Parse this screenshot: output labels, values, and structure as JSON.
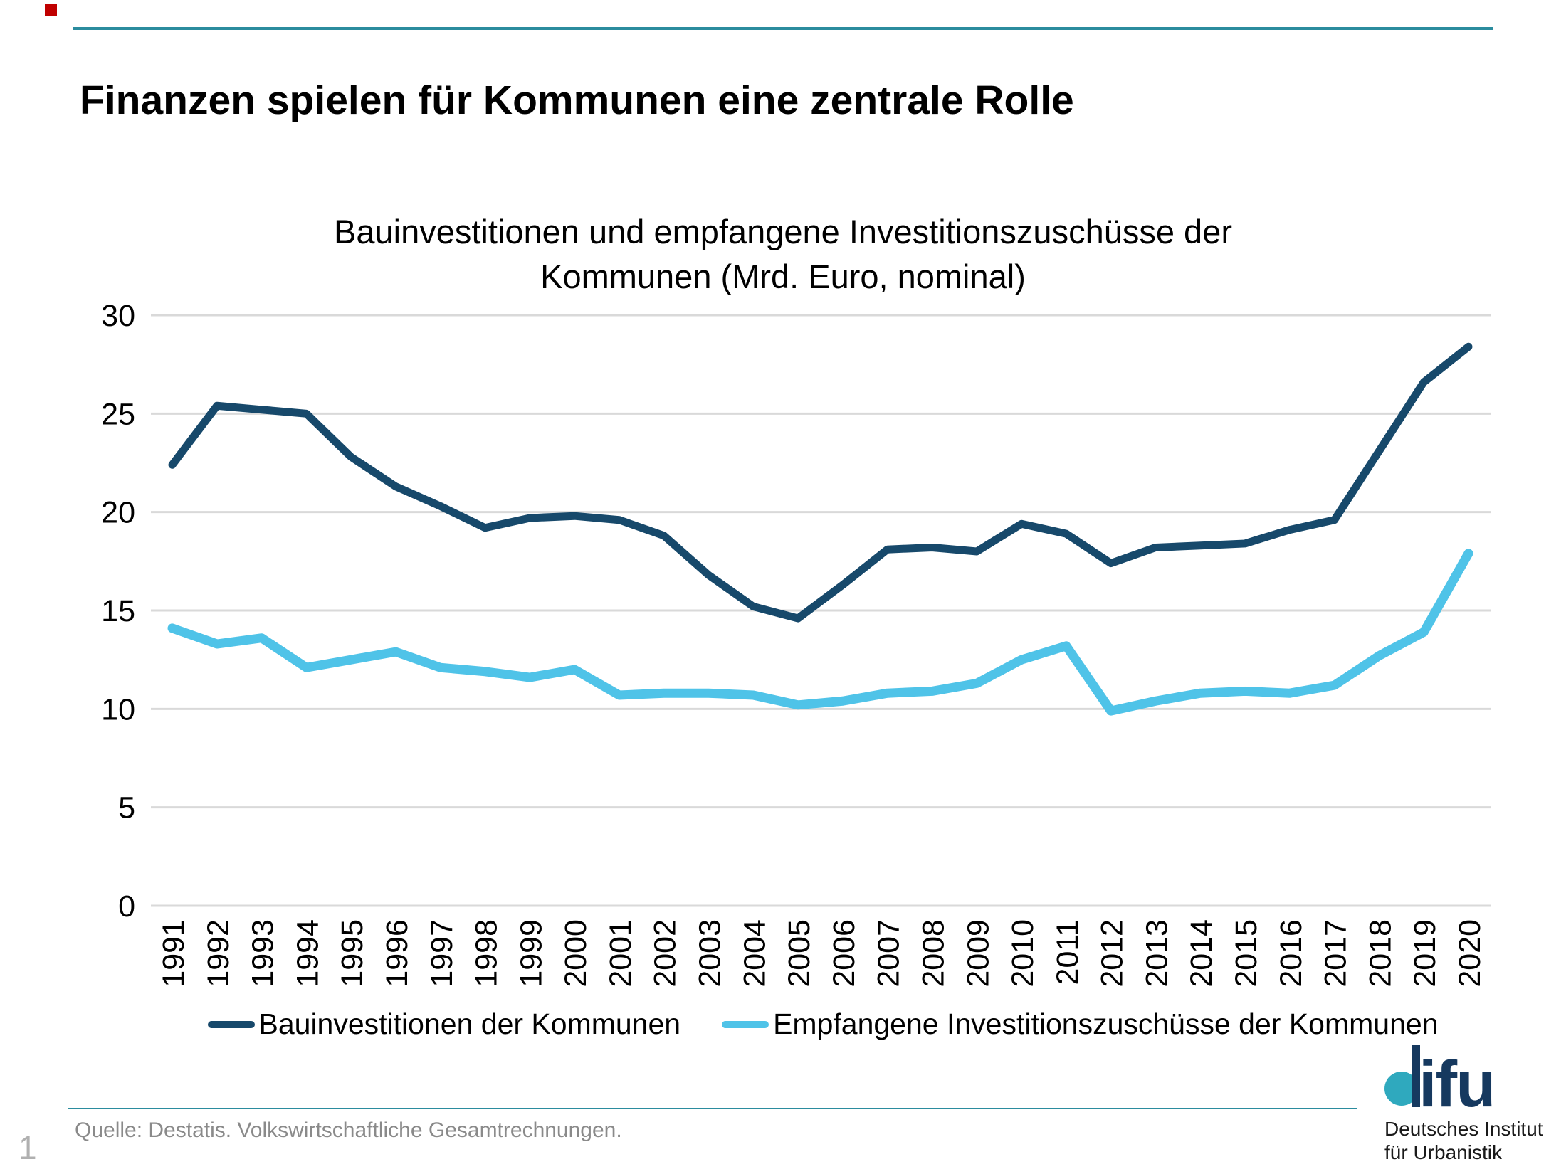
{
  "page": {
    "number": "1"
  },
  "header": {
    "title": "Finanzen spielen für Kommunen eine zentrale Rolle",
    "accent_color": "#c00000",
    "rule_color": "#2b8c9e"
  },
  "footer": {
    "source": "Quelle: Destatis. Volkswirtschaftliche Gesamtrechnungen."
  },
  "logo": {
    "wordmark": "difu",
    "wordmark_suffix": "ifu",
    "line1": "Deutsches Institut",
    "line2": "für Urbanistik",
    "dot_color": "#2fa9be",
    "text_color": "#16395f"
  },
  "chart_data": {
    "type": "line",
    "title": "Bauinvestitionen und empfangene Investitionszuschüsse der Kommunen (Mrd. Euro, nominal)",
    "categories": [
      "1991",
      "1992",
      "1993",
      "1994",
      "1995",
      "1996",
      "1997",
      "1998",
      "1999",
      "2000",
      "2001",
      "2002",
      "2003",
      "2004",
      "2005",
      "2006",
      "2007",
      "2008",
      "2009",
      "2010",
      "2011",
      "2012",
      "2013",
      "2014",
      "2015",
      "2016",
      "2017",
      "2018",
      "2019",
      "2020"
    ],
    "series": [
      {
        "name": "Bauinvestitionen der Kommunen",
        "color": "#17496b",
        "values": [
          22.4,
          25.4,
          25.2,
          25.0,
          22.8,
          21.3,
          20.3,
          19.2,
          19.7,
          19.8,
          19.6,
          18.8,
          16.8,
          15.2,
          14.6,
          16.3,
          18.1,
          18.2,
          18.0,
          19.4,
          18.9,
          17.4,
          18.2,
          18.3,
          18.4,
          19.1,
          19.6,
          23.1,
          26.6,
          28.4
        ]
      },
      {
        "name": "Empfangene Investitionszuschüsse der Kommunen",
        "color": "#4fc3e8",
        "values": [
          14.1,
          13.3,
          13.6,
          12.1,
          12.5,
          12.9,
          12.1,
          11.9,
          11.6,
          12.0,
          10.7,
          10.8,
          10.8,
          10.7,
          10.2,
          10.4,
          10.8,
          10.9,
          11.3,
          12.5,
          13.2,
          9.9,
          10.4,
          10.8,
          10.9,
          10.8,
          11.2,
          12.7,
          13.9,
          17.9
        ]
      }
    ],
    "ylim": [
      0,
      30
    ],
    "yticks": [
      0,
      5,
      10,
      15,
      20,
      25,
      30
    ],
    "grid": true,
    "gridline_color": "#d9d9d9",
    "tick_label_color": "#000000",
    "legend_position": "bottom"
  }
}
